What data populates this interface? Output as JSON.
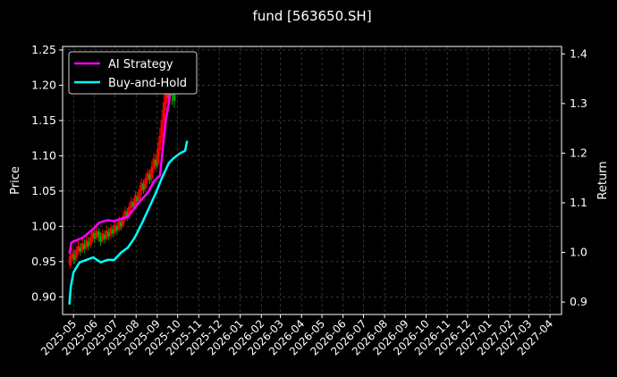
{
  "chart_data": {
    "type": "line",
    "title": "fund [563650.SH]",
    "ylabel": "Price",
    "y2label": "Return",
    "ylim": [
      0.875,
      1.255
    ],
    "y2lim": [
      0.875,
      1.415
    ],
    "yticks": [
      "0.90",
      "0.95",
      "1.00",
      "1.05",
      "1.10",
      "1.15",
      "1.20",
      "1.25"
    ],
    "y2ticks": [
      "0.9",
      "1.0",
      "1.1",
      "1.2",
      "1.3",
      "1.4"
    ],
    "x_labels": [
      "2025-05",
      "2025-06",
      "2025-07",
      "2025-08",
      "2025-09",
      "2025-10",
      "2025-11",
      "2025-12",
      "2026-01",
      "2026-02",
      "2026-03",
      "2026-04",
      "2026-05",
      "2026-06",
      "2026-07",
      "2026-08",
      "2026-09",
      "2026-10",
      "2026-11",
      "2026-12",
      "2027-01",
      "2027-02",
      "2027-03",
      "2027-04"
    ],
    "grid": true,
    "legend_position": "top-left",
    "colors": {
      "background": "#000000",
      "ai_strategy": "#ff00ff",
      "buy_and_hold": "#00ffff",
      "candle_up": "#ff0000",
      "candle_down": "#00aa00",
      "grid": "#555555"
    },
    "series": [
      {
        "name": "AI Strategy",
        "axis": "right",
        "points": [
          [
            "2025-04-25",
            0.997
          ],
          [
            "2025-04-28",
            1.02
          ],
          [
            "2025-05-06",
            1.025
          ],
          [
            "2025-05-15",
            1.03
          ],
          [
            "2025-05-28",
            1.045
          ],
          [
            "2025-06-08",
            1.06
          ],
          [
            "2025-06-20",
            1.065
          ],
          [
            "2025-06-30",
            1.063
          ],
          [
            "2025-07-10",
            1.068
          ],
          [
            "2025-07-20",
            1.072
          ],
          [
            "2025-07-30",
            1.09
          ],
          [
            "2025-08-08",
            1.105
          ],
          [
            "2025-08-18",
            1.12
          ],
          [
            "2025-08-28",
            1.145
          ],
          [
            "2025-09-05",
            1.155
          ],
          [
            "2025-09-10",
            1.22
          ],
          [
            "2025-09-14",
            1.27
          ],
          [
            "2025-09-18",
            1.3
          ],
          [
            "2025-09-22",
            1.36
          ],
          [
            "2025-09-26",
            1.39
          ]
        ]
      },
      {
        "name": "Buy-and-Hold",
        "axis": "right",
        "points": [
          [
            "2025-04-25",
            0.895
          ],
          [
            "2025-04-27",
            0.93
          ],
          [
            "2025-05-01",
            0.96
          ],
          [
            "2025-05-10",
            0.98
          ],
          [
            "2025-05-20",
            0.985
          ],
          [
            "2025-05-30",
            0.99
          ],
          [
            "2025-06-10",
            0.98
          ],
          [
            "2025-06-20",
            0.985
          ],
          [
            "2025-06-30",
            0.985
          ],
          [
            "2025-07-10",
            1.0
          ],
          [
            "2025-07-20",
            1.01
          ],
          [
            "2025-07-30",
            1.03
          ],
          [
            "2025-08-10",
            1.06
          ],
          [
            "2025-08-20",
            1.09
          ],
          [
            "2025-08-30",
            1.12
          ],
          [
            "2025-09-08",
            1.15
          ],
          [
            "2025-09-18",
            1.18
          ],
          [
            "2025-09-25",
            1.19
          ],
          [
            "2025-10-05",
            1.2
          ],
          [
            "2025-10-12",
            1.205
          ],
          [
            "2025-10-15",
            1.225
          ]
        ]
      }
    ],
    "candles": [
      {
        "date": "2025-04-26",
        "open": 0.945,
        "close": 0.958,
        "high": 0.965,
        "low": 0.94
      },
      {
        "date": "2025-04-29",
        "open": 0.955,
        "close": 0.962,
        "high": 0.97,
        "low": 0.95
      },
      {
        "date": "2025-05-02",
        "open": 0.96,
        "close": 0.952,
        "high": 0.968,
        "low": 0.946
      },
      {
        "date": "2025-05-05",
        "open": 0.955,
        "close": 0.966,
        "high": 0.972,
        "low": 0.95
      },
      {
        "date": "2025-05-08",
        "open": 0.965,
        "close": 0.972,
        "high": 0.98,
        "low": 0.96
      },
      {
        "date": "2025-05-11",
        "open": 0.97,
        "close": 0.964,
        "high": 0.976,
        "low": 0.958
      },
      {
        "date": "2025-05-14",
        "open": 0.966,
        "close": 0.976,
        "high": 0.984,
        "low": 0.962
      },
      {
        "date": "2025-05-17",
        "open": 0.975,
        "close": 0.968,
        "high": 0.982,
        "low": 0.962
      },
      {
        "date": "2025-05-20",
        "open": 0.97,
        "close": 0.98,
        "high": 0.988,
        "low": 0.966
      },
      {
        "date": "2025-05-23",
        "open": 0.978,
        "close": 0.972,
        "high": 0.985,
        "low": 0.966
      },
      {
        "date": "2025-05-26",
        "open": 0.974,
        "close": 0.984,
        "high": 0.99,
        "low": 0.97
      },
      {
        "date": "2025-05-29",
        "open": 0.984,
        "close": 0.992,
        "high": 0.998,
        "low": 0.978
      },
      {
        "date": "2025-06-01",
        "open": 0.99,
        "close": 0.982,
        "high": 0.996,
        "low": 0.976
      },
      {
        "date": "2025-06-04",
        "open": 0.984,
        "close": 0.994,
        "high": 1.0,
        "low": 0.98
      },
      {
        "date": "2025-06-07",
        "open": 0.992,
        "close": 0.986,
        "high": 0.998,
        "low": 0.978
      },
      {
        "date": "2025-06-10",
        "open": 0.986,
        "close": 0.978,
        "high": 0.992,
        "low": 0.972
      },
      {
        "date": "2025-06-13",
        "open": 0.98,
        "close": 0.99,
        "high": 0.996,
        "low": 0.976
      },
      {
        "date": "2025-06-16",
        "open": 0.988,
        "close": 0.982,
        "high": 0.994,
        "low": 0.976
      },
      {
        "date": "2025-06-19",
        "open": 0.984,
        "close": 0.994,
        "high": 1.0,
        "low": 0.98
      },
      {
        "date": "2025-06-22",
        "open": 0.992,
        "close": 0.986,
        "high": 0.998,
        "low": 0.98
      },
      {
        "date": "2025-06-25",
        "open": 0.988,
        "close": 0.998,
        "high": 1.004,
        "low": 0.982
      },
      {
        "date": "2025-06-28",
        "open": 0.996,
        "close": 0.99,
        "high": 1.002,
        "low": 0.984
      },
      {
        "date": "2025-07-01",
        "open": 0.992,
        "close": 1.002,
        "high": 1.008,
        "low": 0.988
      },
      {
        "date": "2025-07-04",
        "open": 1.0,
        "close": 0.994,
        "high": 1.006,
        "low": 0.988
      },
      {
        "date": "2025-07-07",
        "open": 0.996,
        "close": 1.008,
        "high": 1.014,
        "low": 0.992
      },
      {
        "date": "2025-07-10",
        "open": 1.006,
        "close": 1.0,
        "high": 1.012,
        "low": 0.994
      },
      {
        "date": "2025-07-13",
        "open": 1.002,
        "close": 1.014,
        "high": 1.02,
        "low": 0.998
      },
      {
        "date": "2025-07-16",
        "open": 1.012,
        "close": 1.022,
        "high": 1.028,
        "low": 1.006
      },
      {
        "date": "2025-07-19",
        "open": 1.02,
        "close": 1.014,
        "high": 1.026,
        "low": 1.008
      },
      {
        "date": "2025-07-22",
        "open": 1.016,
        "close": 1.028,
        "high": 1.034,
        "low": 1.01
      },
      {
        "date": "2025-07-25",
        "open": 1.026,
        "close": 1.036,
        "high": 1.042,
        "low": 1.02
      },
      {
        "date": "2025-07-28",
        "open": 1.034,
        "close": 1.028,
        "high": 1.04,
        "low": 1.022
      },
      {
        "date": "2025-07-31",
        "open": 1.03,
        "close": 1.044,
        "high": 1.05,
        "low": 1.024
      },
      {
        "date": "2025-08-03",
        "open": 1.042,
        "close": 1.036,
        "high": 1.048,
        "low": 1.03
      },
      {
        "date": "2025-08-06",
        "open": 1.038,
        "close": 1.052,
        "high": 1.058,
        "low": 1.032
      },
      {
        "date": "2025-08-09",
        "open": 1.05,
        "close": 1.062,
        "high": 1.068,
        "low": 1.044
      },
      {
        "date": "2025-08-12",
        "open": 1.06,
        "close": 1.052,
        "high": 1.066,
        "low": 1.046
      },
      {
        "date": "2025-08-15",
        "open": 1.054,
        "close": 1.068,
        "high": 1.074,
        "low": 1.048
      },
      {
        "date": "2025-08-18",
        "open": 1.066,
        "close": 1.076,
        "high": 1.082,
        "low": 1.06
      },
      {
        "date": "2025-08-21",
        "open": 1.074,
        "close": 1.066,
        "high": 1.08,
        "low": 1.06
      },
      {
        "date": "2025-08-24",
        "open": 1.068,
        "close": 1.084,
        "high": 1.092,
        "low": 1.062
      },
      {
        "date": "2025-08-27",
        "open": 1.082,
        "close": 1.096,
        "high": 1.104,
        "low": 1.076
      },
      {
        "date": "2025-08-30",
        "open": 1.094,
        "close": 1.086,
        "high": 1.102,
        "low": 1.08
      },
      {
        "date": "2025-09-02",
        "open": 1.088,
        "close": 1.11,
        "high": 1.12,
        "low": 1.082
      },
      {
        "date": "2025-09-05",
        "open": 1.108,
        "close": 1.128,
        "high": 1.14,
        "low": 1.1
      },
      {
        "date": "2025-09-08",
        "open": 1.126,
        "close": 1.15,
        "high": 1.165,
        "low": 1.118
      },
      {
        "date": "2025-09-11",
        "open": 1.148,
        "close": 1.176,
        "high": 1.19,
        "low": 1.14
      },
      {
        "date": "2025-09-14",
        "open": 1.174,
        "close": 1.2,
        "high": 1.215,
        "low": 1.165
      },
      {
        "date": "2025-09-17",
        "open": 1.198,
        "close": 1.182,
        "high": 1.225,
        "low": 1.175
      },
      {
        "date": "2025-09-20",
        "open": 1.184,
        "close": 1.21,
        "high": 1.232,
        "low": 1.178
      },
      {
        "date": "2025-09-23",
        "open": 1.208,
        "close": 1.19,
        "high": 1.238,
        "low": 1.172
      },
      {
        "date": "2025-09-26",
        "open": 1.192,
        "close": 1.178,
        "high": 1.225,
        "low": 1.168
      }
    ]
  }
}
